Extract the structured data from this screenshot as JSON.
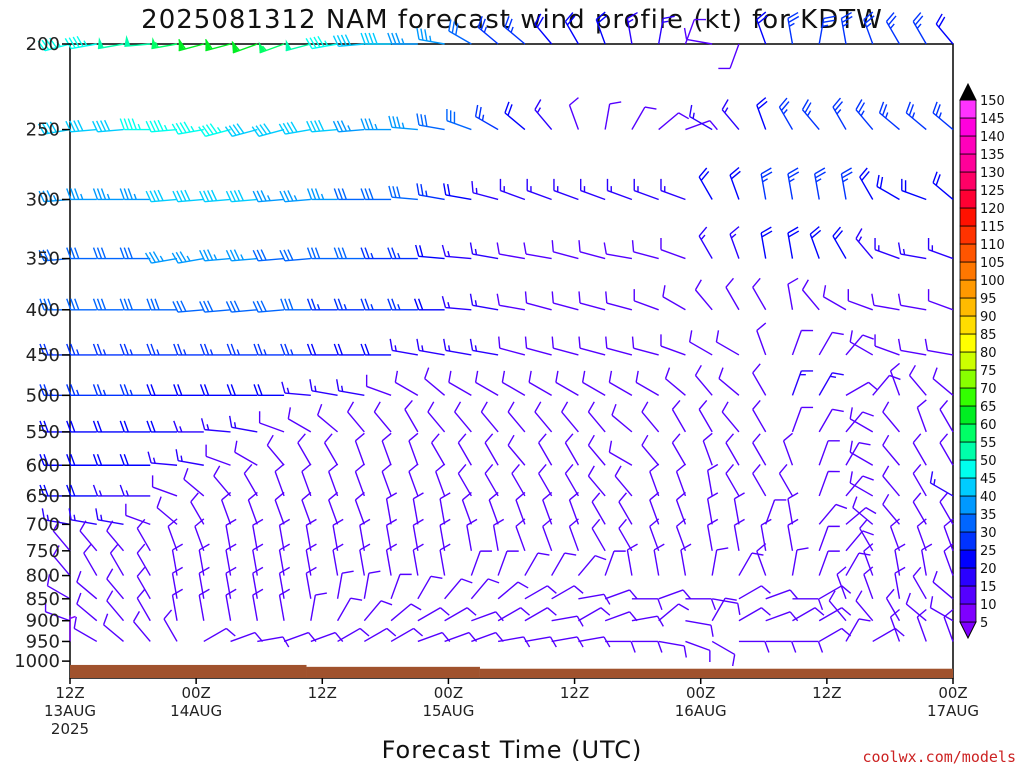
{
  "title": "2025081312 NAM forecast wind profile (kt) for KDTW",
  "credit": "coolwx.com/models",
  "chart_data": {
    "type": "wind-barb-profile",
    "title": "2025081312 NAM forecast wind profile (kt) for KDTW",
    "xlabel": "Forecast Time (UTC)",
    "ylabel": "",
    "x_ticks": [
      {
        "hour": 0,
        "lines": [
          "12Z",
          "13AUG",
          "2025"
        ]
      },
      {
        "hour": 12,
        "lines": [
          "00Z",
          "14AUG"
        ]
      },
      {
        "hour": 24,
        "lines": [
          "12Z"
        ]
      },
      {
        "hour": 36,
        "lines": [
          "00Z",
          "15AUG"
        ]
      },
      {
        "hour": 48,
        "lines": [
          "12Z"
        ]
      },
      {
        "hour": 60,
        "lines": [
          "00Z",
          "16AUG"
        ]
      },
      {
        "hour": 72,
        "lines": [
          "12Z"
        ]
      },
      {
        "hour": 84,
        "lines": [
          "00Z",
          "17AUG"
        ]
      }
    ],
    "x_range_hours": [
      0,
      84
    ],
    "y_scale": "log-pressure",
    "y_range_hpa": [
      1000,
      200
    ],
    "y_ticks": [
      200,
      250,
      300,
      350,
      400,
      450,
      500,
      550,
      600,
      650,
      700,
      750,
      800,
      850,
      900,
      950,
      1000
    ],
    "surface_color": "#a0522d",
    "colorbar": {
      "levels": [
        5,
        10,
        15,
        20,
        25,
        30,
        35,
        40,
        45,
        50,
        55,
        60,
        65,
        70,
        75,
        80,
        85,
        90,
        95,
        100,
        105,
        110,
        115,
        120,
        125,
        130,
        135,
        140,
        145,
        150
      ],
      "colors": [
        "#7f00ff",
        "#5500ff",
        "#2a00ff",
        "#0000ff",
        "#0033ff",
        "#0066ff",
        "#0099ff",
        "#00ccff",
        "#00ffee",
        "#00ffaa",
        "#00ff66",
        "#00ee22",
        "#33ff00",
        "#88ff00",
        "#ccff00",
        "#ffff00",
        "#ffdd00",
        "#ffbb00",
        "#ff9900",
        "#ff7700",
        "#ff5500",
        "#ff3300",
        "#ff1100",
        "#ff0033",
        "#ff0066",
        "#ff0099",
        "#ff00bb",
        "#ff00dd",
        "#ff33ff",
        "#000000"
      ]
    },
    "levels_hpa": [
      200,
      250,
      300,
      350,
      400,
      450,
      500,
      550,
      600,
      650,
      700,
      750,
      800,
      850,
      900,
      950
    ],
    "barbs_by_level": [
      {
        "p": 200,
        "dir": [
          255,
          260,
          260,
          265,
          260,
          255,
          255,
          250,
          250,
          255,
          260,
          265,
          270,
          270,
          280,
          300,
          310,
          310,
          320,
          330,
          340,
          350,
          10,
          20,
          280,
          200,
          340,
          350,
          10,
          350,
          340,
          330,
          330,
          320
        ],
        "spd": [
          45,
          45,
          50,
          50,
          55,
          60,
          60,
          60,
          55,
          50,
          45,
          40,
          40,
          35,
          35,
          30,
          25,
          25,
          20,
          20,
          20,
          15,
          15,
          10,
          10,
          10,
          20,
          25,
          25,
          25,
          25,
          25,
          25,
          20
        ]
      },
      {
        "p": 250,
        "dir": [
          260,
          265,
          265,
          270,
          265,
          260,
          255,
          255,
          255,
          260,
          265,
          265,
          270,
          275,
          280,
          290,
          300,
          310,
          320,
          340,
          10,
          30,
          50,
          70,
          300,
          320,
          340,
          330,
          320,
          330,
          320,
          310,
          310,
          310
        ],
        "spd": [
          40,
          40,
          40,
          45,
          45,
          45,
          45,
          40,
          40,
          40,
          40,
          35,
          35,
          35,
          30,
          30,
          25,
          20,
          15,
          10,
          10,
          10,
          10,
          10,
          15,
          15,
          20,
          25,
          25,
          25,
          25,
          25,
          25,
          25
        ]
      },
      {
        "p": 300,
        "dir": [
          265,
          270,
          270,
          270,
          265,
          265,
          265,
          265,
          265,
          265,
          270,
          270,
          270,
          275,
          280,
          280,
          285,
          290,
          290,
          290,
          290,
          290,
          290,
          290,
          330,
          340,
          350,
          350,
          350,
          350,
          330,
          300,
          290,
          310
        ],
        "spd": [
          35,
          35,
          35,
          35,
          40,
          40,
          40,
          40,
          35,
          35,
          35,
          30,
          30,
          30,
          25,
          20,
          15,
          15,
          15,
          15,
          15,
          15,
          15,
          15,
          20,
          20,
          25,
          25,
          25,
          25,
          20,
          20,
          20,
          20
        ]
      },
      {
        "p": 350,
        "dir": [
          265,
          270,
          270,
          270,
          260,
          260,
          265,
          265,
          265,
          265,
          270,
          270,
          270,
          270,
          275,
          275,
          280,
          280,
          280,
          285,
          285,
          280,
          285,
          290,
          330,
          340,
          350,
          350,
          340,
          330,
          320,
          290,
          280,
          290
        ],
        "spd": [
          30,
          30,
          30,
          30,
          35,
          35,
          35,
          35,
          30,
          30,
          30,
          30,
          25,
          25,
          20,
          15,
          15,
          10,
          10,
          10,
          10,
          10,
          10,
          10,
          15,
          15,
          20,
          20,
          20,
          20,
          15,
          15,
          15,
          15
        ]
      },
      {
        "p": 400,
        "dir": [
          270,
          270,
          270,
          270,
          270,
          265,
          265,
          265,
          265,
          270,
          270,
          270,
          270,
          270,
          270,
          275,
          280,
          280,
          285,
          285,
          285,
          285,
          290,
          300,
          320,
          330,
          330,
          350,
          320,
          300,
          290,
          280,
          280,
          290
        ],
        "spd": [
          30,
          30,
          30,
          30,
          30,
          30,
          30,
          30,
          30,
          30,
          25,
          25,
          25,
          25,
          20,
          15,
          15,
          10,
          10,
          10,
          10,
          10,
          10,
          10,
          10,
          10,
          10,
          10,
          10,
          10,
          10,
          10,
          10,
          10
        ]
      },
      {
        "p": 450,
        "dir": [
          270,
          270,
          270,
          270,
          270,
          270,
          270,
          270,
          270,
          270,
          270,
          270,
          270,
          280,
          280,
          280,
          280,
          285,
          285,
          285,
          285,
          285,
          285,
          290,
          300,
          300,
          340,
          20,
          30,
          40,
          300,
          290,
          280,
          280
        ],
        "spd": [
          25,
          25,
          25,
          25,
          25,
          25,
          25,
          25,
          25,
          25,
          20,
          20,
          20,
          15,
          15,
          15,
          15,
          10,
          10,
          10,
          10,
          10,
          10,
          10,
          10,
          10,
          10,
          10,
          10,
          10,
          10,
          10,
          10,
          10
        ]
      },
      {
        "p": 500,
        "dir": [
          270,
          270,
          270,
          270,
          270,
          270,
          270,
          270,
          270,
          275,
          280,
          280,
          290,
          300,
          310,
          300,
          300,
          300,
          300,
          300,
          300,
          300,
          300,
          310,
          320,
          310,
          330,
          20,
          30,
          60,
          40,
          340,
          320,
          310
        ],
        "spd": [
          25,
          25,
          25,
          25,
          20,
          20,
          20,
          20,
          20,
          15,
          15,
          15,
          10,
          10,
          10,
          10,
          10,
          10,
          10,
          10,
          10,
          10,
          10,
          10,
          10,
          10,
          10,
          15,
          15,
          10,
          10,
          10,
          10,
          10
        ]
      },
      {
        "p": 550,
        "dir": [
          270,
          270,
          270,
          270,
          270,
          270,
          275,
          280,
          290,
          300,
          310,
          320,
          320,
          330,
          320,
          320,
          320,
          320,
          320,
          320,
          320,
          310,
          320,
          330,
          330,
          320,
          330,
          20,
          30,
          40,
          300,
          320,
          340,
          330
        ],
        "spd": [
          20,
          20,
          20,
          20,
          20,
          15,
          15,
          15,
          10,
          10,
          10,
          10,
          10,
          10,
          10,
          10,
          10,
          10,
          10,
          10,
          10,
          10,
          10,
          10,
          10,
          10,
          10,
          10,
          10,
          10,
          10,
          10,
          10,
          10
        ]
      },
      {
        "p": 600,
        "dir": [
          270,
          270,
          270,
          270,
          275,
          280,
          290,
          300,
          320,
          330,
          330,
          340,
          340,
          340,
          330,
          330,
          330,
          320,
          330,
          330,
          320,
          300,
          320,
          330,
          340,
          330,
          330,
          340,
          20,
          30,
          300,
          320,
          330,
          330
        ],
        "spd": [
          20,
          20,
          20,
          20,
          15,
          15,
          10,
          10,
          10,
          10,
          10,
          10,
          10,
          10,
          10,
          10,
          10,
          10,
          10,
          10,
          10,
          10,
          10,
          10,
          10,
          10,
          10,
          10,
          10,
          10,
          10,
          10,
          10,
          10
        ]
      },
      {
        "p": 650,
        "dir": [
          270,
          270,
          270,
          270,
          290,
          310,
          320,
          330,
          340,
          340,
          340,
          340,
          340,
          340,
          340,
          330,
          330,
          330,
          330,
          330,
          320,
          320,
          340,
          340,
          350,
          330,
          330,
          330,
          20,
          40,
          300,
          320,
          330,
          300
        ],
        "spd": [
          20,
          20,
          15,
          15,
          10,
          10,
          10,
          10,
          10,
          10,
          10,
          10,
          10,
          10,
          10,
          10,
          10,
          10,
          10,
          10,
          10,
          10,
          10,
          10,
          10,
          10,
          10,
          10,
          10,
          10,
          10,
          10,
          10,
          15
        ]
      },
      {
        "p": 700,
        "dir": [
          280,
          280,
          280,
          290,
          310,
          330,
          340,
          340,
          340,
          340,
          340,
          340,
          350,
          350,
          350,
          340,
          340,
          340,
          340,
          340,
          330,
          330,
          340,
          340,
          350,
          350,
          20,
          350,
          40,
          50,
          310,
          320,
          330,
          330
        ],
        "spd": [
          15,
          15,
          15,
          10,
          10,
          10,
          10,
          10,
          10,
          10,
          10,
          10,
          10,
          10,
          10,
          10,
          10,
          10,
          10,
          10,
          10,
          10,
          10,
          10,
          10,
          10,
          10,
          10,
          10,
          10,
          10,
          10,
          10,
          10
        ]
      },
      {
        "p": 750,
        "dir": [
          320,
          320,
          320,
          330,
          340,
          340,
          350,
          350,
          350,
          350,
          350,
          350,
          350,
          350,
          350,
          350,
          350,
          340,
          340,
          340,
          330,
          330,
          340,
          340,
          350,
          350,
          350,
          350,
          20,
          40,
          330,
          340,
          340,
          340
        ],
        "spd": [
          10,
          10,
          10,
          10,
          10,
          10,
          10,
          10,
          10,
          10,
          10,
          10,
          10,
          10,
          10,
          10,
          10,
          10,
          10,
          10,
          10,
          10,
          10,
          10,
          10,
          10,
          10,
          10,
          10,
          10,
          10,
          10,
          10,
          10
        ]
      },
      {
        "p": 800,
        "dir": [
          320,
          330,
          330,
          330,
          350,
          350,
          350,
          350,
          350,
          350,
          350,
          350,
          350,
          350,
          350,
          20,
          20,
          30,
          30,
          40,
          20,
          350,
          350,
          350,
          10,
          30,
          340,
          10,
          20,
          30,
          340,
          350,
          350,
          340
        ],
        "spd": [
          10,
          10,
          10,
          10,
          10,
          10,
          10,
          10,
          10,
          10,
          10,
          10,
          10,
          10,
          10,
          10,
          10,
          10,
          10,
          10,
          10,
          10,
          10,
          10,
          10,
          10,
          10,
          10,
          10,
          10,
          10,
          10,
          10,
          10
        ]
      },
      {
        "p": 850,
        "dir": [
          300,
          310,
          320,
          330,
          350,
          350,
          350,
          350,
          350,
          350,
          10,
          10,
          20,
          30,
          40,
          40,
          50,
          60,
          60,
          80,
          70,
          90,
          70,
          90,
          100,
          60,
          70,
          90,
          60,
          340,
          340,
          350,
          330,
          310
        ],
        "spd": [
          10,
          10,
          10,
          10,
          10,
          10,
          10,
          10,
          10,
          10,
          10,
          10,
          10,
          10,
          10,
          10,
          10,
          10,
          10,
          10,
          10,
          10,
          10,
          10,
          10,
          10,
          10,
          10,
          10,
          10,
          10,
          10,
          10,
          10
        ]
      },
      {
        "p": 900,
        "dir": [
          290,
          310,
          320,
          330,
          350,
          350,
          350,
          350,
          350,
          10,
          30,
          40,
          50,
          60,
          60,
          70,
          60,
          60,
          80,
          60,
          70,
          80,
          50,
          100,
          30,
          60,
          70,
          60,
          60,
          320,
          320,
          330,
          310,
          300
        ],
        "spd": [
          10,
          10,
          10,
          10,
          10,
          10,
          10,
          10,
          10,
          10,
          10,
          10,
          10,
          10,
          10,
          10,
          10,
          10,
          10,
          10,
          10,
          10,
          10,
          10,
          10,
          10,
          10,
          10,
          10,
          10,
          10,
          10,
          10,
          10
        ]
      },
      {
        "p": 950,
        "dir": [
          0,
          300,
          310,
          320,
          330,
          60,
          70,
          80,
          70,
          70,
          60,
          60,
          60,
          70,
          70,
          70,
          80,
          80,
          80,
          80,
          90,
          90,
          100,
          110,
          120,
          90,
          90,
          90,
          60,
          30,
          60,
          340,
          340,
          340
        ],
        "spd": [
          5,
          10,
          10,
          10,
          10,
          10,
          10,
          10,
          10,
          10,
          10,
          10,
          10,
          10,
          10,
          10,
          10,
          10,
          10,
          10,
          10,
          10,
          10,
          10,
          10,
          10,
          10,
          10,
          10,
          10,
          10,
          10,
          10,
          10
        ]
      }
    ]
  }
}
